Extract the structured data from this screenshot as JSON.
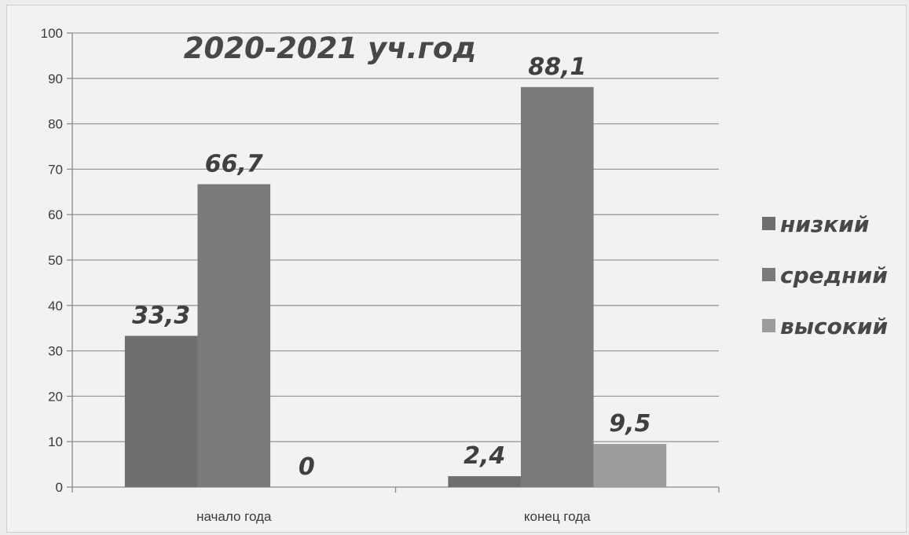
{
  "chart_data": {
    "type": "bar",
    "title": "2020-2021 уч.год",
    "categories": [
      "начало года",
      "конец года"
    ],
    "series": [
      {
        "name": "низкий",
        "values": [
          33.3,
          2.4
        ],
        "labels": [
          "33,3",
          "2,4"
        ],
        "color": "#6e6e6e"
      },
      {
        "name": "средний",
        "values": [
          66.7,
          88.1
        ],
        "labels": [
          "66,7",
          "88,1"
        ],
        "color": "#7a7a7a"
      },
      {
        "name": "высокий",
        "values": [
          0,
          9.5
        ],
        "labels": [
          "0",
          "9,5"
        ],
        "color": "#9c9c9c"
      }
    ],
    "ylim": [
      0,
      100
    ],
    "yticks": [
      0,
      10,
      20,
      30,
      40,
      50,
      60,
      70,
      80,
      90,
      100
    ],
    "grid": true,
    "legend_position": "right"
  }
}
